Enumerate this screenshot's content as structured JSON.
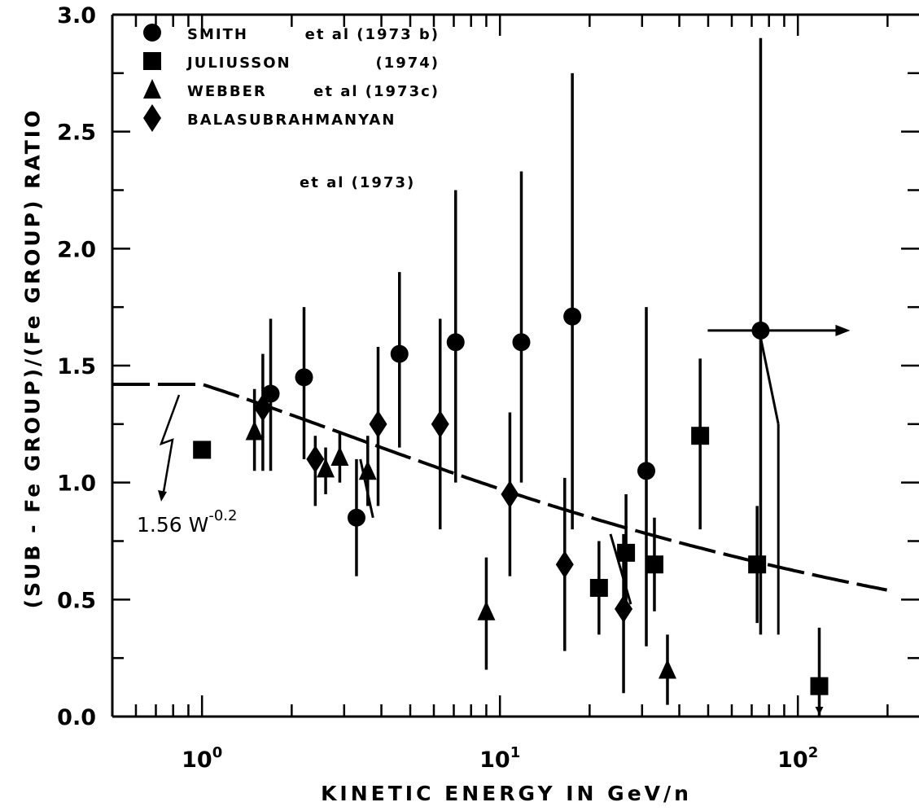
{
  "chart_data": {
    "type": "scatter",
    "xscale": "log",
    "xlim": [
      0.5,
      200
    ],
    "ylim": [
      0,
      3.0
    ],
    "grid": false,
    "legend_position": "top-left",
    "xlabel": "KINETIC  ENERGY  IN  GeV/n",
    "ylabel": "(SUB - Fe GROUP)/(Fe GROUP) RATIO",
    "y_tick_labels": [
      "0.0",
      "0.5",
      "1.0",
      "1.5",
      "2.0",
      "2.5",
      "3.0"
    ],
    "x_tick_labels": [
      {
        "value": 1,
        "base": "10",
        "exp": "0"
      },
      {
        "value": 10,
        "base": "10",
        "exp": "1"
      },
      {
        "value": 100,
        "base": "10",
        "exp": "2"
      }
    ],
    "legend": [
      {
        "marker": "circle",
        "name": "SMITH",
        "note": "et al (1973 b)"
      },
      {
        "marker": "square",
        "name": "JULIUSSON",
        "note": "(1974)"
      },
      {
        "marker": "triangle",
        "name": "WEBBER",
        "note": "et al (1973c)"
      },
      {
        "marker": "diamond",
        "name": "BALASUBRAHMANYAN",
        "note": "et al (1973)"
      }
    ],
    "series": [
      {
        "name": "SMITH",
        "marker": "circle",
        "points": [
          {
            "x": 1.7,
            "y": 1.38,
            "lo": 1.05,
            "hi": 1.7
          },
          {
            "x": 2.2,
            "y": 1.45,
            "lo": 1.1,
            "hi": 1.75
          },
          {
            "x": 3.3,
            "y": 0.85,
            "lo": 0.6,
            "hi": 1.1
          },
          {
            "x": 4.6,
            "y": 1.55,
            "lo": 1.15,
            "hi": 1.9
          },
          {
            "x": 7.1,
            "y": 1.6,
            "lo": 1.0,
            "hi": 2.25
          },
          {
            "x": 11.8,
            "y": 1.6,
            "lo": 1.0,
            "hi": 2.33
          },
          {
            "x": 17.5,
            "y": 1.71,
            "lo": 0.8,
            "hi": 2.75
          },
          {
            "x": 31,
            "y": 1.05,
            "lo": 0.3,
            "hi": 1.75
          },
          {
            "x": 75,
            "y": 1.65,
            "lo": 0.35,
            "hi": 2.9,
            "x_lower_limit": true
          }
        ]
      },
      {
        "name": "JULIUSSON",
        "marker": "square",
        "points": [
          {
            "x": 1.0,
            "y": 1.14
          },
          {
            "x": 21.5,
            "y": 0.55,
            "lo": 0.35,
            "hi": 0.75
          },
          {
            "x": 26.5,
            "y": 0.7,
            "lo": 0.45,
            "hi": 0.95
          },
          {
            "x": 33,
            "y": 0.65,
            "lo": 0.45,
            "hi": 0.85
          },
          {
            "x": 47,
            "y": 1.2,
            "lo": 0.8,
            "hi": 1.53
          },
          {
            "x": 73,
            "y": 0.65,
            "lo": 0.4,
            "hi": 0.9
          },
          {
            "x": 118,
            "y": 0.13,
            "lo": 0.0,
            "hi": 0.38,
            "upper_limit": true
          }
        ]
      },
      {
        "name": "WEBBER",
        "marker": "triangle",
        "points": [
          {
            "x": 1.5,
            "y": 1.22,
            "lo": 1.05,
            "hi": 1.4
          },
          {
            "x": 2.6,
            "y": 1.06,
            "lo": 0.95,
            "hi": 1.15
          },
          {
            "x": 2.9,
            "y": 1.11,
            "lo": 1.0,
            "hi": 1.22
          },
          {
            "x": 3.6,
            "y": 1.05,
            "lo": 0.9,
            "hi": 1.2
          },
          {
            "x": 9.0,
            "y": 0.45,
            "lo": 0.2,
            "hi": 0.68
          },
          {
            "x": 36.5,
            "y": 0.2,
            "lo": 0.05,
            "hi": 0.35
          }
        ]
      },
      {
        "name": "BALASUBRAHMANYAN",
        "marker": "diamond",
        "points": [
          {
            "x": 1.6,
            "y": 1.32,
            "lo": 1.05,
            "hi": 1.55
          },
          {
            "x": 2.4,
            "y": 1.1,
            "lo": 0.9,
            "hi": 1.2
          },
          {
            "x": 3.9,
            "y": 1.25,
            "lo": 0.9,
            "hi": 1.58
          },
          {
            "x": 6.3,
            "y": 1.25,
            "lo": 0.8,
            "hi": 1.7
          },
          {
            "x": 10.8,
            "y": 0.95,
            "lo": 0.6,
            "hi": 1.3
          },
          {
            "x": 16.5,
            "y": 0.65,
            "lo": 0.28,
            "hi": 1.02
          },
          {
            "x": 26,
            "y": 0.46,
            "lo": 0.1,
            "hi": 0.78
          }
        ]
      }
    ],
    "fit_curve": {
      "label": "1.56 W^-0.2",
      "coefficient": 1.56,
      "exponent": -0.2,
      "annotation_prefix": "1.56 W",
      "annotation_exponent": "-0.2"
    },
    "slant_lines": [
      {
        "x1": 3.4,
        "y1": 1.1,
        "x2": 3.75,
        "y2": 0.85
      },
      {
        "x1": 23.5,
        "y1": 0.78,
        "x2": 27.5,
        "y2": 0.48
      },
      {
        "x1": 75,
        "y1": 1.62,
        "x2": 86,
        "y2": 1.25
      }
    ]
  }
}
